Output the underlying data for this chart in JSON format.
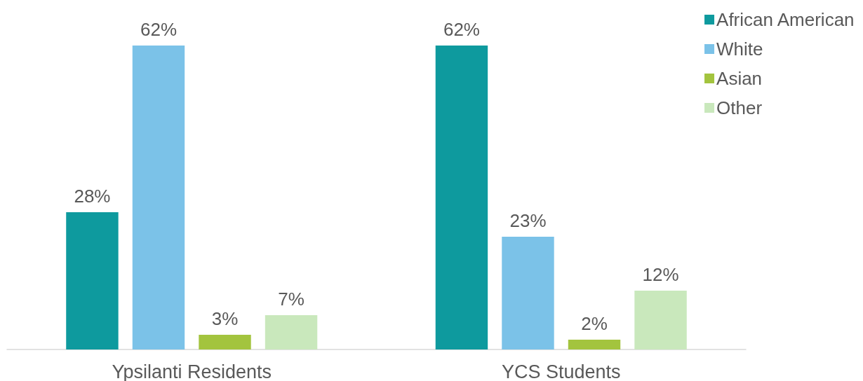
{
  "chart_data": {
    "type": "bar",
    "categories": [
      "Ypsilanti Residents",
      "YCS Students"
    ],
    "series": [
      {
        "name": "African American",
        "color": "#0e9a9e",
        "values": [
          28,
          62
        ],
        "value_labels": [
          "28%",
          "62%"
        ]
      },
      {
        "name": "White",
        "color": "#7bc2e8",
        "values": [
          62,
          23
        ],
        "value_labels": [
          "62%",
          "23%"
        ]
      },
      {
        "name": "Asian",
        "color": "#a3c43e",
        "values": [
          3,
          2
        ],
        "value_labels": [
          "3%",
          "2%"
        ]
      },
      {
        "name": "Other",
        "color": "#c9e8bc",
        "values": [
          7,
          12
        ],
        "value_labels": [
          "7%",
          "12%"
        ]
      }
    ],
    "tick_labels": "x",
    "grid": false,
    "legend": "top right"
  }
}
